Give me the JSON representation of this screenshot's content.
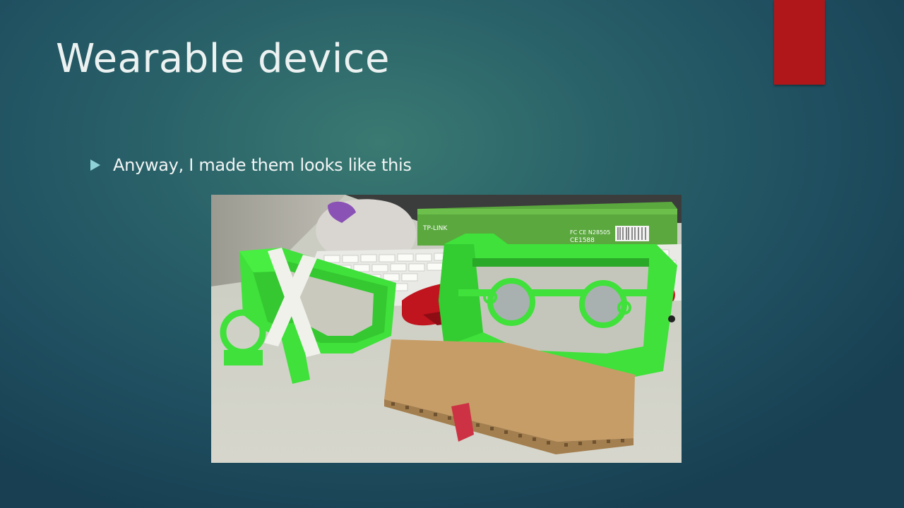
{
  "slide": {
    "title": "Wearable device",
    "bullets": [
      {
        "text": "Anyway, I made them looks like this"
      }
    ]
  },
  "photo": {
    "box_brand_text": "TP-LINK",
    "box_cert_text": "FC CE N28505",
    "box_serial_text": "CE1588"
  },
  "colors": {
    "accent": "#b0171a",
    "bullet": "#8fd3d8",
    "title_text": "#ecf2f1"
  }
}
